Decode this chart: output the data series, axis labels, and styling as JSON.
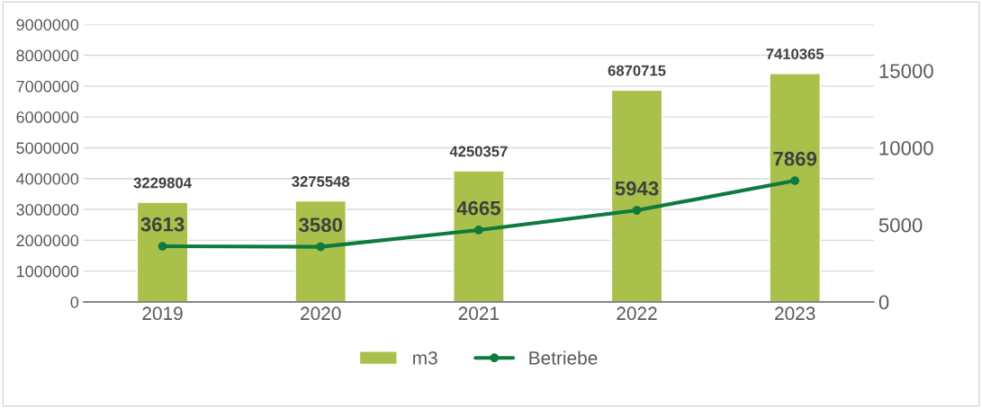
{
  "chart_data": {
    "type": "bar",
    "categories": [
      "2019",
      "2020",
      "2021",
      "2022",
      "2023"
    ],
    "series": [
      {
        "name": "m3",
        "color": "#a9c04a",
        "values": [
          3229804,
          3275548,
          4250357,
          6870715,
          7410365
        ]
      },
      {
        "name": "Betriebe",
        "type": "line",
        "axis": "y2",
        "color": "#0e7a3e",
        "marker": "circle",
        "values": [
          3613,
          3580,
          4665,
          5943,
          7869
        ]
      }
    ],
    "data_labels": true,
    "ylim": [
      0,
      9000000
    ],
    "yticks": [
      0,
      1000000,
      2000000,
      3000000,
      4000000,
      5000000,
      6000000,
      7000000,
      8000000,
      9000000
    ],
    "y2lim": [
      0,
      18000
    ],
    "y2ticks": [
      0,
      5000,
      10000,
      15000
    ],
    "grid": "y",
    "legend": "bottom"
  }
}
